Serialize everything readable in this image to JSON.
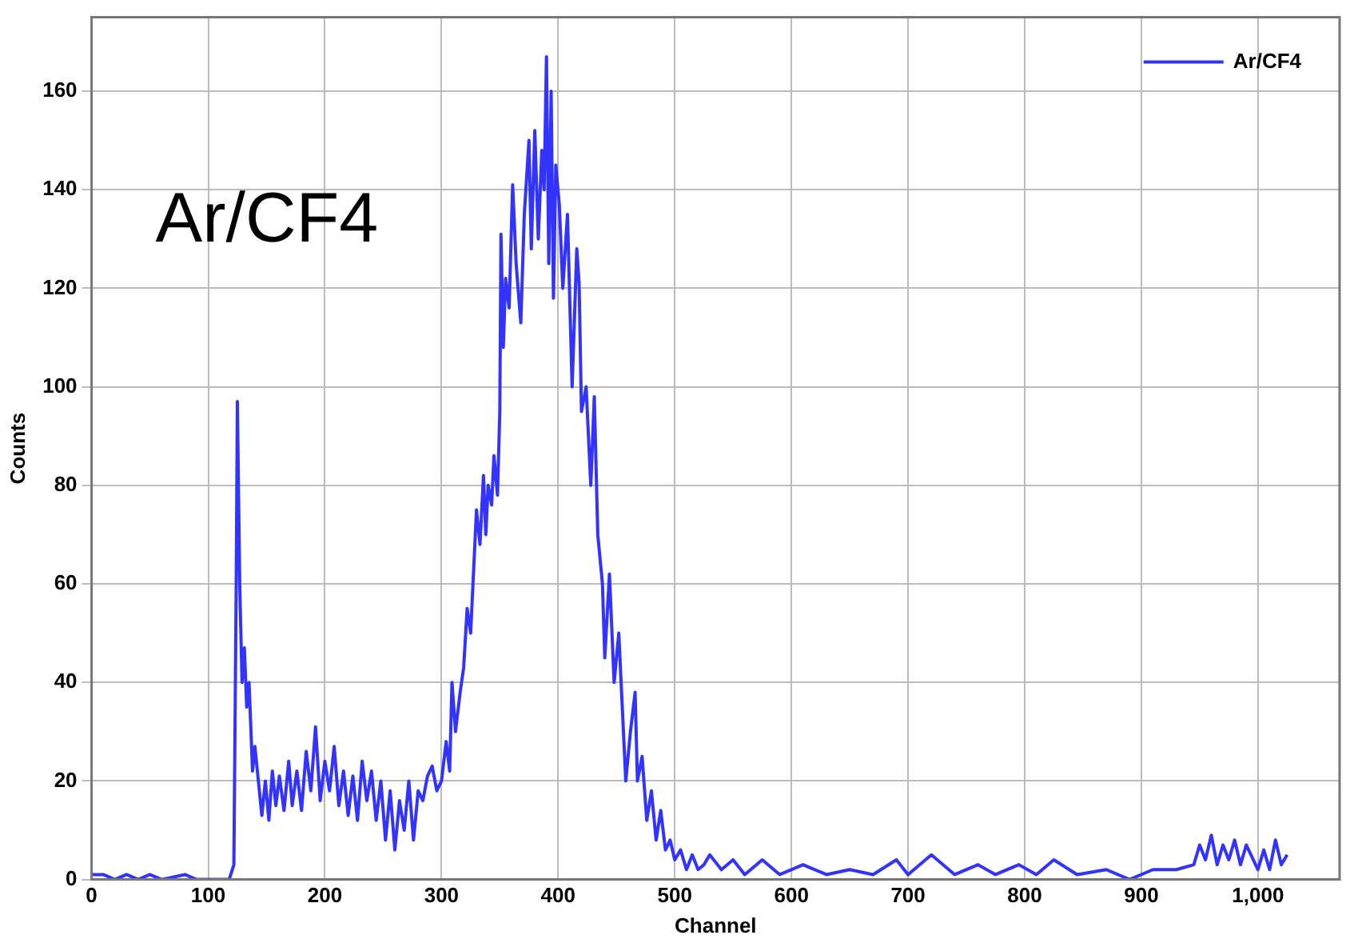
{
  "chart_data": {
    "type": "line",
    "xlabel": "Channel",
    "ylabel": "Counts",
    "annotations": [
      "Ar/CF4"
    ],
    "xlim": [
      0,
      1070
    ],
    "xticks": [
      0,
      100,
      200,
      300,
      400,
      500,
      600,
      700,
      800,
      900,
      {
        "value": 1000,
        "label": "1,000"
      }
    ],
    "ylim": [
      0,
      175
    ],
    "yticks": [
      0,
      20,
      40,
      60,
      80,
      100,
      120,
      140,
      160
    ],
    "grid": true,
    "legend": "top right",
    "marker": "none",
    "line_style": "solid",
    "series": [
      {
        "name": "Ar/CF4",
        "color": "#3333ff",
        "x": [
          0,
          10,
          20,
          30,
          40,
          50,
          60,
          80,
          90,
          118,
          122,
          124,
          125,
          127,
          129,
          131,
          133,
          135,
          138,
          140,
          143,
          146,
          149,
          152,
          155,
          158,
          161,
          165,
          169,
          172,
          176,
          180,
          184,
          188,
          192,
          196,
          200,
          204,
          208,
          212,
          216,
          220,
          224,
          228,
          232,
          236,
          240,
          244,
          248,
          252,
          256,
          260,
          264,
          268,
          272,
          276,
          280,
          284,
          288,
          292,
          296,
          300,
          304,
          307,
          309,
          312,
          316,
          319,
          322,
          325,
          328,
          330,
          333,
          336,
          338,
          340,
          343,
          345,
          348,
          350,
          351,
          353,
          355,
          358,
          361,
          364,
          368,
          371,
          375,
          377,
          380,
          383,
          386,
          388,
          390,
          392,
          394,
          396,
          398,
          401,
          404,
          408,
          412,
          416,
          418,
          420,
          424,
          428,
          431,
          434,
          438,
          440,
          444,
          448,
          452,
          456,
          458,
          462,
          466,
          468,
          472,
          476,
          480,
          484,
          488,
          492,
          496,
          500,
          505,
          510,
          515,
          520,
          525,
          530,
          540,
          550,
          560,
          575,
          590,
          610,
          630,
          650,
          670,
          690,
          700,
          720,
          740,
          760,
          775,
          795,
          810,
          825,
          845,
          870,
          890,
          910,
          930,
          945,
          950,
          955,
          960,
          965,
          970,
          975,
          980,
          985,
          990,
          1000,
          1005,
          1010,
          1015,
          1020,
          1025
        ],
        "values": [
          1,
          1,
          0,
          1,
          0,
          1,
          0,
          1,
          0,
          0,
          3,
          60,
          97,
          60,
          40,
          47,
          35,
          40,
          22,
          27,
          20,
          13,
          20,
          12,
          22,
          15,
          21,
          14,
          24,
          15,
          22,
          14,
          26,
          18,
          31,
          16,
          24,
          18,
          27,
          15,
          22,
          13,
          21,
          12,
          24,
          16,
          22,
          12,
          20,
          8,
          18,
          6,
          16,
          10,
          20,
          8,
          18,
          16,
          21,
          23,
          18,
          20,
          28,
          22,
          40,
          30,
          38,
          43,
          55,
          50,
          65,
          75,
          68,
          82,
          70,
          80,
          76,
          86,
          78,
          95,
          131,
          108,
          122,
          116,
          141,
          125,
          113,
          135,
          150,
          128,
          152,
          130,
          148,
          140,
          167,
          125,
          160,
          118,
          145,
          137,
          120,
          135,
          100,
          128,
          121,
          95,
          100,
          80,
          98,
          70,
          60,
          45,
          62,
          40,
          50,
          30,
          20,
          30,
          38,
          20,
          25,
          12,
          18,
          8,
          14,
          6,
          8,
          4,
          6,
          2,
          5,
          2,
          3,
          5,
          2,
          4,
          1,
          4,
          1,
          3,
          1,
          2,
          1,
          4,
          1,
          5,
          1,
          3,
          1,
          3,
          1,
          4,
          1,
          2,
          0,
          2,
          2,
          3,
          7,
          4,
          9,
          3,
          7,
          4,
          8,
          3,
          7,
          2,
          6,
          2,
          8,
          3,
          5
        ]
      }
    ]
  }
}
